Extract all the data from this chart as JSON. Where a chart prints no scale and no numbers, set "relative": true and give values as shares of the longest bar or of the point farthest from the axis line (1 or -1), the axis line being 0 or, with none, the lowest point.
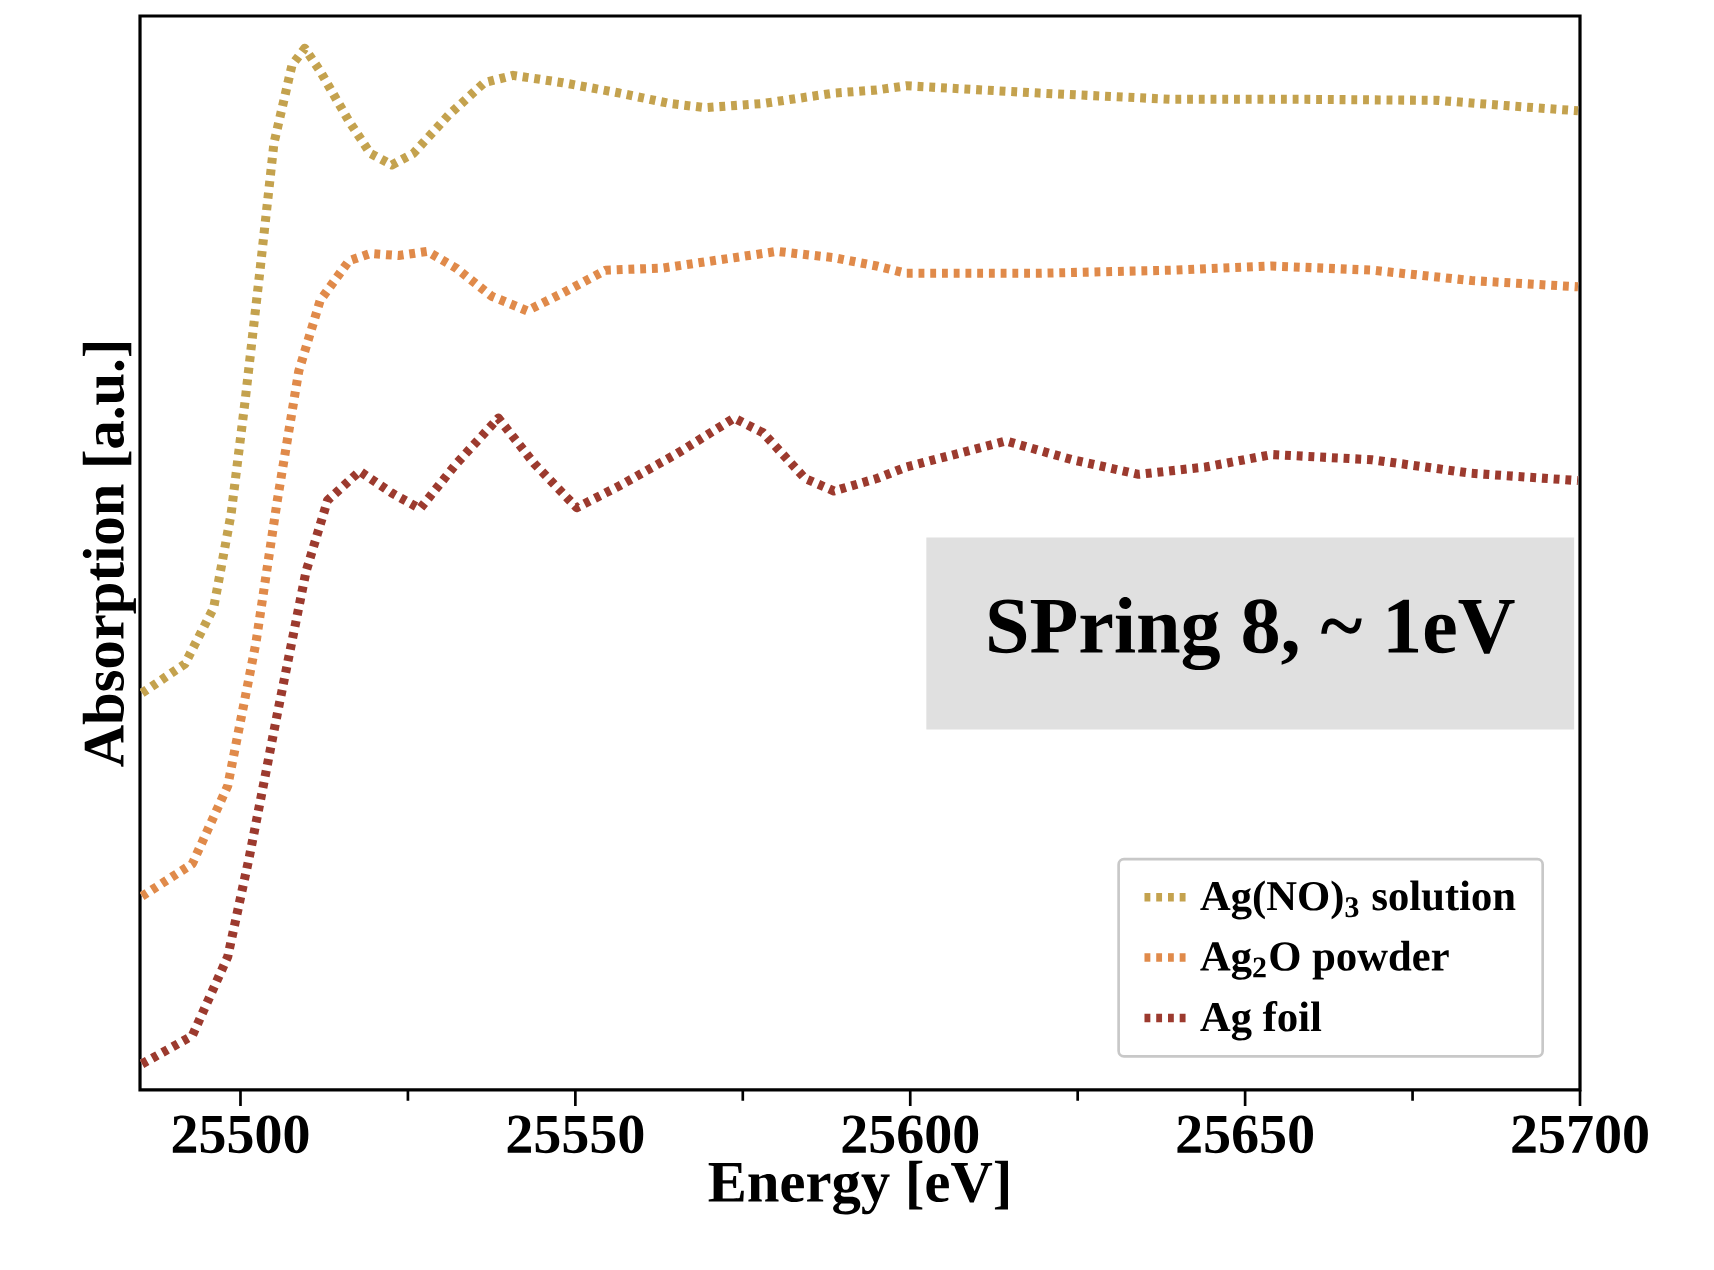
{
  "chart_data": {
    "type": "line",
    "xlabel": "Energy [eV]",
    "ylabel": "Absorption [a.u.]",
    "relative": true,
    "xlim": [
      25485,
      25700
    ],
    "xticks": [
      25500,
      25550,
      25600,
      25650,
      25700
    ],
    "grid": false,
    "legend": "bottom right",
    "marker": "none",
    "line_style": "dotted",
    "annotations": [
      "SPring 8, ~ 1eV"
    ],
    "series": [
      {
        "name": "Ag(NO)$_{3}$ solution",
        "color": "#c4a24e",
        "x": [
          25485.3,
          25491.7,
          25496.0,
          25498.6,
          25500.7,
          25502.9,
          25505.0,
          25507.7,
          25509.6,
          25511.9,
          25516.2,
          25519.4,
          25522.6,
          25525.8,
          25531.1,
          25536.4,
          25540.7,
          25548.1,
          25556.6,
          25564.1,
          25569.4,
          25578.0,
          25588.6,
          25595.0,
          25599.4,
          25619.2,
          25639.1,
          25659.0,
          25678.8,
          25688.8,
          25699.7
        ],
        "values": [
          0.381,
          0.409,
          0.463,
          0.553,
          0.662,
          0.786,
          0.909,
          0.984,
          1.0,
          0.978,
          0.93,
          0.899,
          0.888,
          0.899,
          0.936,
          0.967,
          0.974,
          0.967,
          0.957,
          0.947,
          0.943,
          0.947,
          0.957,
          0.96,
          0.964,
          0.957,
          0.951,
          0.951,
          0.95,
          0.945,
          0.94
        ]
      },
      {
        "name": "Ag$_{2}$O powder",
        "color": "#e08a4a",
        "x": [
          25485.3,
          25492.8,
          25498.1,
          25502.3,
          25505.5,
          25508.7,
          25511.9,
          25516.2,
          25519.4,
          25523.6,
          25527.9,
          25532.2,
          25537.5,
          25542.8,
          25548.1,
          25554.5,
          25563.0,
          25573.7,
          25580.1,
          25588.6,
          25595.0,
          25599.4,
          25619.2,
          25639.1,
          25654.0,
          25668.9,
          25683.8,
          25699.7
        ],
        "values": [
          0.186,
          0.217,
          0.292,
          0.429,
          0.566,
          0.69,
          0.758,
          0.796,
          0.803,
          0.801,
          0.805,
          0.789,
          0.762,
          0.748,
          0.765,
          0.787,
          0.789,
          0.799,
          0.805,
          0.799,
          0.791,
          0.784,
          0.784,
          0.787,
          0.791,
          0.787,
          0.777,
          0.771
        ]
      },
      {
        "name": "Ag foil",
        "color": "#9c3a2e",
        "x": [
          25485.3,
          25492.8,
          25498.1,
          25501.3,
          25505.5,
          25509.8,
          25513.0,
          25517.8,
          25522.6,
          25526.8,
          25532.2,
          25538.5,
          25543.9,
          25550.2,
          25556.6,
          25565.2,
          25573.7,
          25578.0,
          25584.3,
          25588.6,
          25595.0,
          25599.4,
          25614.3,
          25624.2,
          25634.1,
          25644.1,
          25654.0,
          25668.9,
          25683.8,
          25699.7
        ],
        "values": [
          0.025,
          0.052,
          0.128,
          0.223,
          0.361,
          0.498,
          0.566,
          0.594,
          0.573,
          0.558,
          0.601,
          0.645,
          0.601,
          0.559,
          0.58,
          0.611,
          0.645,
          0.631,
          0.587,
          0.575,
          0.587,
          0.598,
          0.623,
          0.605,
          0.591,
          0.598,
          0.61,
          0.605,
          0.592,
          0.585
        ]
      }
    ]
  }
}
